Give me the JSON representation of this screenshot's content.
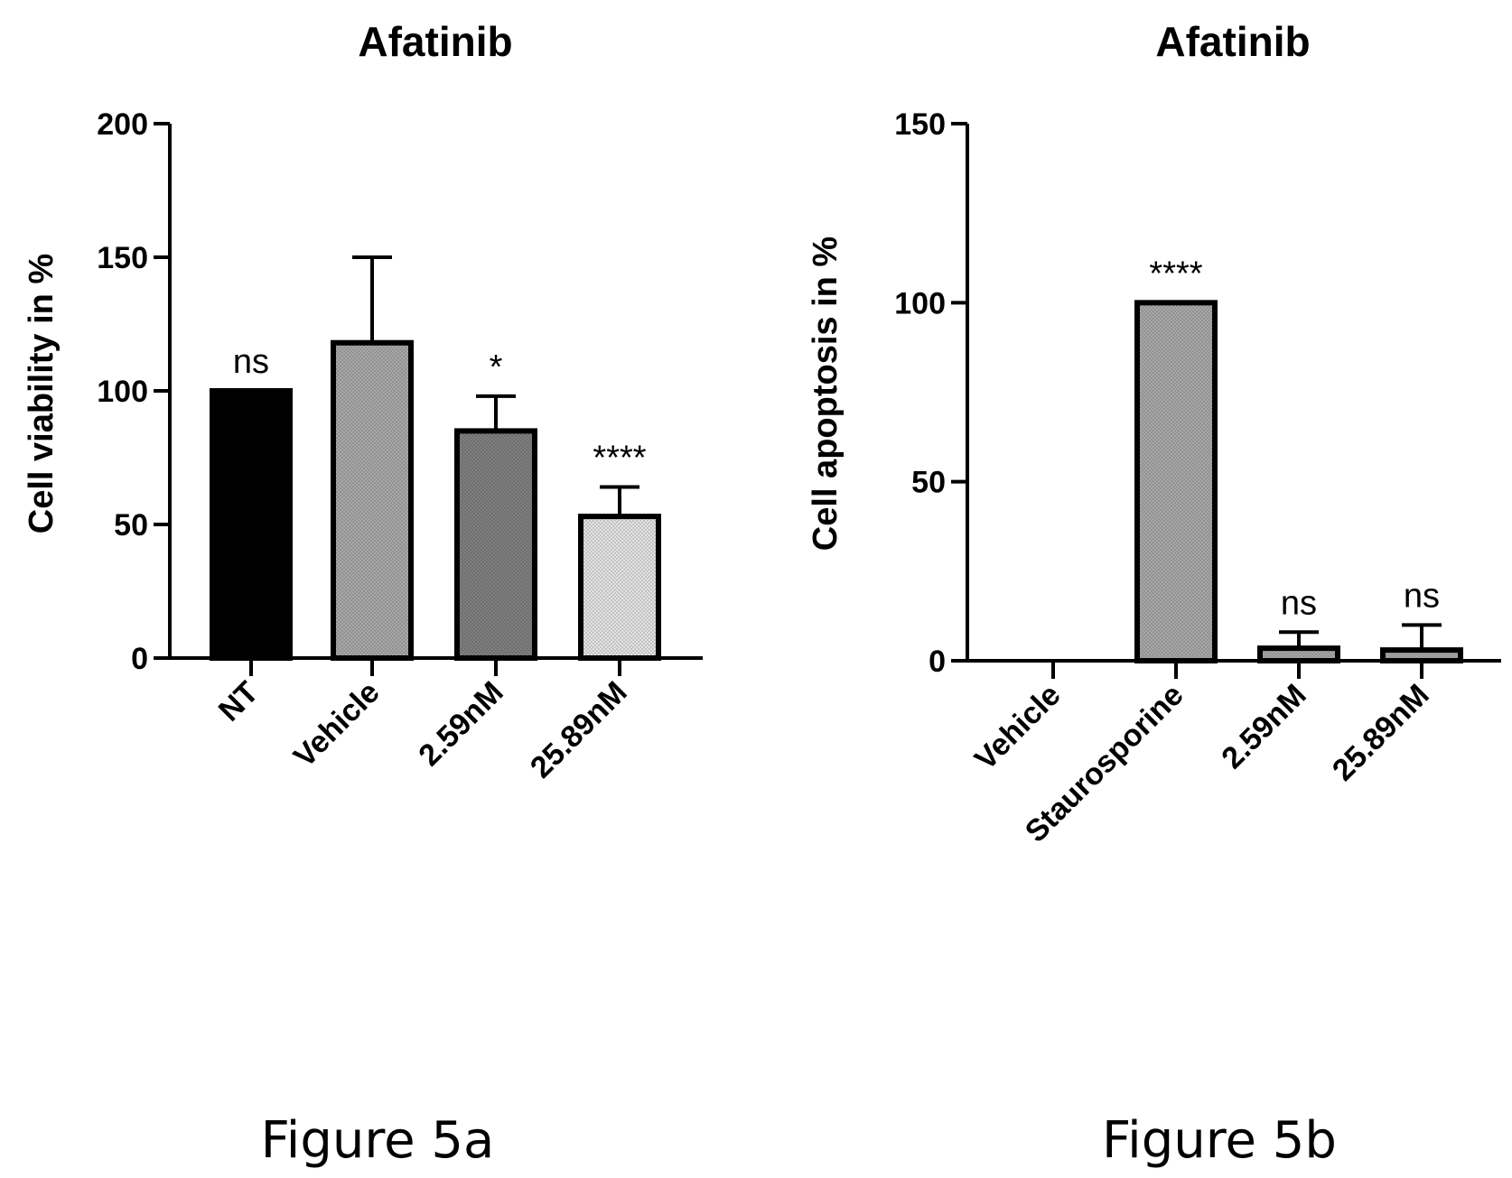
{
  "chart_data": [
    {
      "type": "bar",
      "title": "Afatinib",
      "ylabel": "Cell viability in %",
      "xlabel": "",
      "ylim": [
        0,
        200
      ],
      "yticks": [
        0,
        50,
        100,
        150,
        200
      ],
      "categories": [
        "NT",
        "Vehicle",
        "2.59nM",
        "25.89nM"
      ],
      "values": [
        100,
        118,
        85,
        53
      ],
      "error": [
        0,
        32,
        13,
        11
      ],
      "significance": [
        "ns",
        "",
        "*",
        "****"
      ],
      "fills": [
        "#000000",
        "#a8a8a8",
        "#808080",
        "#e2e2e2"
      ],
      "grid": false
    },
    {
      "type": "bar",
      "title": "Afatinib",
      "ylabel": "Cell apoptosis in %",
      "xlabel": "",
      "ylim": [
        0,
        150
      ],
      "yticks": [
        0,
        50,
        100,
        150
      ],
      "categories": [
        "Vehicle",
        "Staurosporine",
        "2.59nM",
        "25.89nM"
      ],
      "values": [
        0,
        100,
        3.5,
        3
      ],
      "error": [
        0,
        0,
        4.5,
        7
      ],
      "significance": [
        "",
        "****",
        "ns",
        "ns"
      ],
      "fills": [
        "#a8a8a8",
        "#a8a8a8",
        "#a8a8a8",
        "#a8a8a8"
      ],
      "grid": false
    }
  ],
  "captions": [
    "Figure 5a",
    "Figure 5b"
  ]
}
